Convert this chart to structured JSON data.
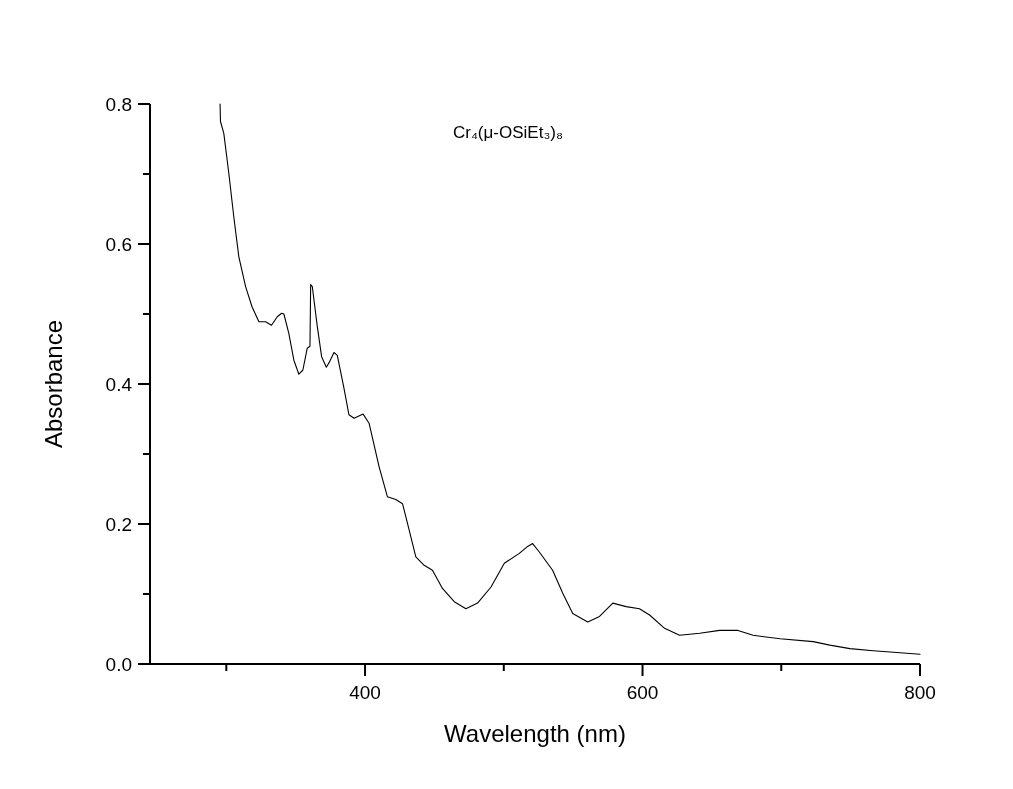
{
  "chart_data": {
    "type": "line",
    "xlabel": "Wavelength (nm)",
    "ylabel": "Absorbance",
    "annotations": [
      "Cr₄(μ-OSiEt₃)₈"
    ],
    "xlim": [
      245,
      800
    ],
    "xticks": [
      {
        "value": 300,
        "label": null
      },
      400,
      {
        "value": 500,
        "label": null
      },
      600,
      {
        "value": 700,
        "label": null
      },
      800
    ],
    "ylim": [
      0,
      0.8
    ],
    "yticks": [
      "0.0",
      {
        "value": 0.1,
        "label": null
      },
      0.2,
      {
        "value": 0.3,
        "label": null
      },
      0.4,
      {
        "value": 0.5,
        "label": null
      },
      0.6,
      {
        "value": 0.7,
        "label": null
      },
      0.8
    ],
    "grid": false,
    "marker": "none",
    "line_style": "solid",
    "series": [
      {
        "color": "#000000",
        "x": [
          295.5,
          295.8,
          298.2,
          301.8,
          305.4,
          309.0,
          313.9,
          318.6,
          323.5,
          328.3,
          332.6,
          336.7,
          339.9,
          341.5,
          345.1,
          348.7,
          352.3,
          355.2,
          358.3,
          360.3,
          360.8,
          362.0,
          365.6,
          368.7,
          372.1,
          374.5,
          377.6,
          380.0,
          384.8,
          388.4,
          392.1,
          398.6,
          402.9,
          410.1,
          416.1,
          422.2,
          427.0,
          430.6,
          436.6,
          442.6,
          448.6,
          455.8,
          464.3,
          472.7,
          481.1,
          490.8,
          500.4,
          511.2,
          517.2,
          520.8,
          525.6,
          535.2,
          542.5,
          549.7,
          560.5,
          569.0,
          578.6,
          588.2,
          597.8,
          605.1,
          615.9,
          626.7,
          641.2,
          655.6,
          668.8,
          679.7,
          699.2,
          723.0,
          735.0,
          749.5,
          766.3,
          785.6,
          800
        ],
        "values": [
          0.8,
          0.775,
          0.758,
          0.701,
          0.639,
          0.582,
          0.539,
          0.51,
          0.489,
          0.489,
          0.484,
          0.496,
          0.501,
          0.5,
          0.472,
          0.434,
          0.414,
          0.42,
          0.451,
          0.454,
          0.542,
          0.539,
          0.482,
          0.439,
          0.424,
          0.432,
          0.445,
          0.441,
          0.394,
          0.356,
          0.351,
          0.357,
          0.344,
          0.282,
          0.239,
          0.235,
          0.229,
          0.201,
          0.153,
          0.141,
          0.134,
          0.108,
          0.089,
          0.079,
          0.087,
          0.11,
          0.144,
          0.158,
          0.168,
          0.172,
          0.16,
          0.134,
          0.101,
          0.072,
          0.06,
          0.068,
          0.087,
          0.082,
          0.079,
          0.07,
          0.051,
          0.041,
          0.044,
          0.048,
          0.048,
          0.041,
          0.036,
          0.032,
          0.027,
          0.022,
          0.019,
          0.016,
          0.014
        ]
      }
    ]
  }
}
